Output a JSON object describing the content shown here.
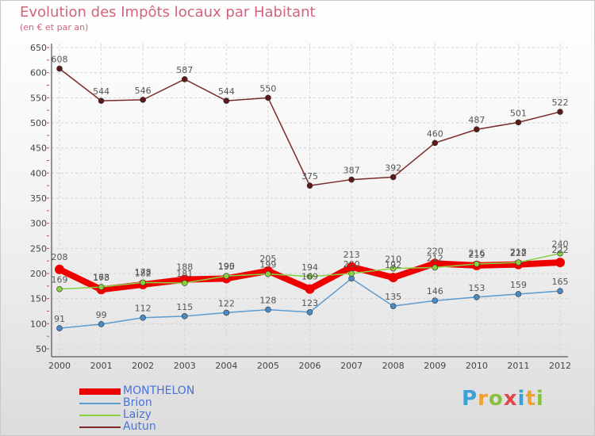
{
  "title": "Evolution des Impôts locaux par Habitant",
  "subtitle": "(en € et par an)",
  "logo": {
    "letters": [
      "P",
      "r",
      "o",
      "x",
      "i",
      "t",
      "i"
    ],
    "colors": [
      "#3aa0d8",
      "#f0a030",
      "#8ac040",
      "#e04848",
      "#3aa0d8",
      "#f0a030",
      "#8ac040"
    ]
  },
  "chart_data": {
    "type": "line",
    "title": "Evolution des Impôts locaux par Habitant",
    "subtitle": "(en € et par an)",
    "xlabel": "",
    "ylabel": "",
    "categories": [
      "2000",
      "2001",
      "2002",
      "2003",
      "2004",
      "2005",
      "2006",
      "2007",
      "2008",
      "2009",
      "2010",
      "2011",
      "2012"
    ],
    "ylim": [
      50,
      650
    ],
    "yticks": [
      50,
      100,
      150,
      200,
      250,
      300,
      350,
      400,
      450,
      500,
      550,
      600,
      650
    ],
    "grid": true,
    "legend_position": "bottom-left",
    "series": [
      {
        "name": "MONTHELON",
        "color": "#ee0000",
        "marker_color": "#ee0000",
        "weight": "heavy",
        "values": [
          208,
          168,
          178,
          188,
          190,
          205,
          169,
          213,
          192,
          220,
          216,
          218,
          222
        ],
        "labels": [
          "208",
          "168",
          "178",
          "188",
          "190",
          "205",
          "169",
          "213",
          "192",
          "220",
          "216",
          "218",
          "222"
        ]
      },
      {
        "name": "Brion",
        "color": "#5b9bd0",
        "marker_color": "#4a8ac4",
        "weight": "thin",
        "values": [
          91,
          99,
          112,
          115,
          122,
          128,
          123,
          190,
          135,
          146,
          153,
          159,
          165
        ],
        "labels": [
          "91",
          "99",
          "112",
          "115",
          "122",
          "128",
          "123",
          "",
          "135",
          "146",
          "153",
          "159",
          "165"
        ]
      },
      {
        "name": "Laizy",
        "color": "#88d040",
        "marker_color": "#88d040",
        "weight": "thin",
        "values": [
          169,
          173,
          182,
          181,
          195,
          199,
          194,
          200,
          210,
          212,
          219,
          222,
          240
        ],
        "labels": [
          "169",
          "173",
          "182",
          "181",
          "195",
          "199",
          "194",
          "200",
          "210",
          "212",
          "219",
          "222",
          "240"
        ]
      },
      {
        "name": "Autun",
        "color": "#7a2a2a",
        "marker_color": "#5a1a1a",
        "weight": "thin",
        "values": [
          608,
          544,
          546,
          587,
          544,
          550,
          375,
          387,
          392,
          460,
          487,
          501,
          522
        ],
        "labels": [
          "608",
          "544",
          "546",
          "587",
          "544",
          "550",
          "375",
          "387",
          "392",
          "460",
          "487",
          "501",
          "522"
        ]
      }
    ]
  }
}
